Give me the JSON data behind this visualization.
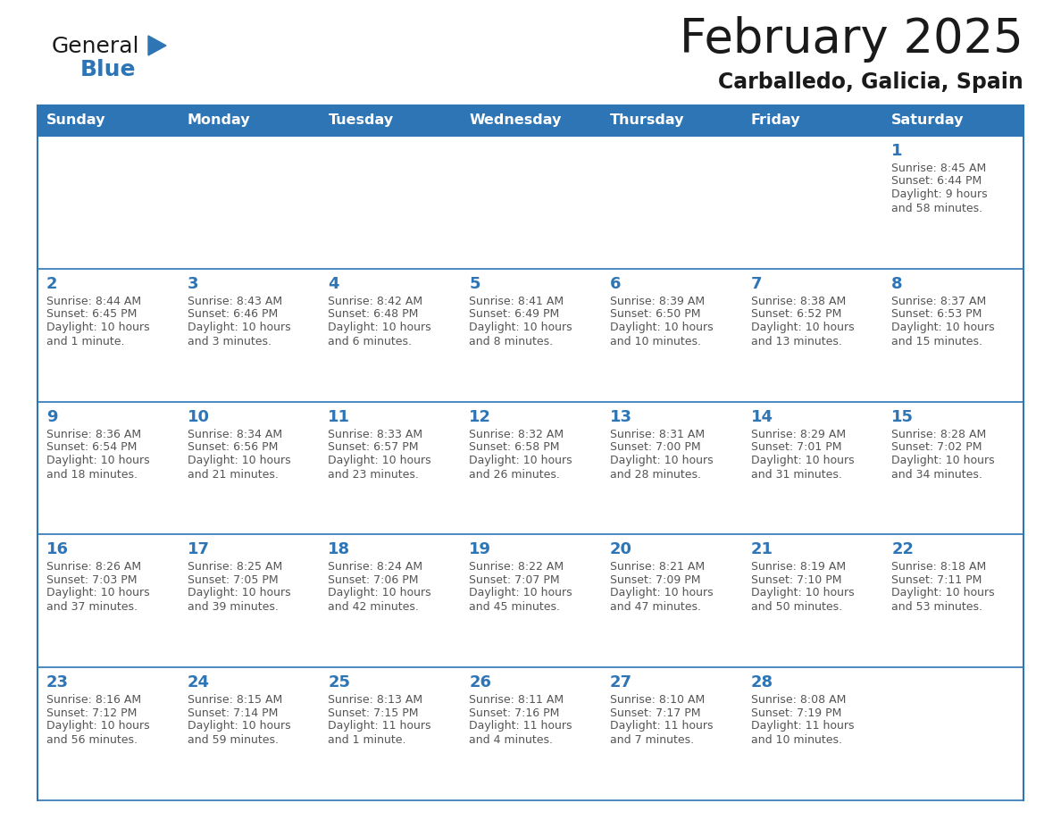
{
  "title": "February 2025",
  "subtitle": "Carballedo, Galicia, Spain",
  "header_bg": "#2E75B6",
  "header_text_color": "#FFFFFF",
  "cell_bg": "#FFFFFF",
  "border_color": "#2E75B6",
  "row_divider_color": "#2E75B6",
  "day_names": [
    "Sunday",
    "Monday",
    "Tuesday",
    "Wednesday",
    "Thursday",
    "Friday",
    "Saturday"
  ],
  "title_color": "#1a1a1a",
  "subtitle_color": "#1a1a1a",
  "day_number_color": "#2E75B6",
  "info_color": "#555555",
  "logo_general_color": "#1a1a1a",
  "logo_blue_color": "#2E75B6",
  "logo_triangle_color": "#2E75B6",
  "calendar_data": [
    [
      null,
      null,
      null,
      null,
      null,
      null,
      {
        "day": "1",
        "sunrise": "8:45 AM",
        "sunset": "6:44 PM",
        "daylight": "9 hours\nand 58 minutes."
      }
    ],
    [
      {
        "day": "2",
        "sunrise": "8:44 AM",
        "sunset": "6:45 PM",
        "daylight": "10 hours\nand 1 minute."
      },
      {
        "day": "3",
        "sunrise": "8:43 AM",
        "sunset": "6:46 PM",
        "daylight": "10 hours\nand 3 minutes."
      },
      {
        "day": "4",
        "sunrise": "8:42 AM",
        "sunset": "6:48 PM",
        "daylight": "10 hours\nand 6 minutes."
      },
      {
        "day": "5",
        "sunrise": "8:41 AM",
        "sunset": "6:49 PM",
        "daylight": "10 hours\nand 8 minutes."
      },
      {
        "day": "6",
        "sunrise": "8:39 AM",
        "sunset": "6:50 PM",
        "daylight": "10 hours\nand 10 minutes."
      },
      {
        "day": "7",
        "sunrise": "8:38 AM",
        "sunset": "6:52 PM",
        "daylight": "10 hours\nand 13 minutes."
      },
      {
        "day": "8",
        "sunrise": "8:37 AM",
        "sunset": "6:53 PM",
        "daylight": "10 hours\nand 15 minutes."
      }
    ],
    [
      {
        "day": "9",
        "sunrise": "8:36 AM",
        "sunset": "6:54 PM",
        "daylight": "10 hours\nand 18 minutes."
      },
      {
        "day": "10",
        "sunrise": "8:34 AM",
        "sunset": "6:56 PM",
        "daylight": "10 hours\nand 21 minutes."
      },
      {
        "day": "11",
        "sunrise": "8:33 AM",
        "sunset": "6:57 PM",
        "daylight": "10 hours\nand 23 minutes."
      },
      {
        "day": "12",
        "sunrise": "8:32 AM",
        "sunset": "6:58 PM",
        "daylight": "10 hours\nand 26 minutes."
      },
      {
        "day": "13",
        "sunrise": "8:31 AM",
        "sunset": "7:00 PM",
        "daylight": "10 hours\nand 28 minutes."
      },
      {
        "day": "14",
        "sunrise": "8:29 AM",
        "sunset": "7:01 PM",
        "daylight": "10 hours\nand 31 minutes."
      },
      {
        "day": "15",
        "sunrise": "8:28 AM",
        "sunset": "7:02 PM",
        "daylight": "10 hours\nand 34 minutes."
      }
    ],
    [
      {
        "day": "16",
        "sunrise": "8:26 AM",
        "sunset": "7:03 PM",
        "daylight": "10 hours\nand 37 minutes."
      },
      {
        "day": "17",
        "sunrise": "8:25 AM",
        "sunset": "7:05 PM",
        "daylight": "10 hours\nand 39 minutes."
      },
      {
        "day": "18",
        "sunrise": "8:24 AM",
        "sunset": "7:06 PM",
        "daylight": "10 hours\nand 42 minutes."
      },
      {
        "day": "19",
        "sunrise": "8:22 AM",
        "sunset": "7:07 PM",
        "daylight": "10 hours\nand 45 minutes."
      },
      {
        "day": "20",
        "sunrise": "8:21 AM",
        "sunset": "7:09 PM",
        "daylight": "10 hours\nand 47 minutes."
      },
      {
        "day": "21",
        "sunrise": "8:19 AM",
        "sunset": "7:10 PM",
        "daylight": "10 hours\nand 50 minutes."
      },
      {
        "day": "22",
        "sunrise": "8:18 AM",
        "sunset": "7:11 PM",
        "daylight": "10 hours\nand 53 minutes."
      }
    ],
    [
      {
        "day": "23",
        "sunrise": "8:16 AM",
        "sunset": "7:12 PM",
        "daylight": "10 hours\nand 56 minutes."
      },
      {
        "day": "24",
        "sunrise": "8:15 AM",
        "sunset": "7:14 PM",
        "daylight": "10 hours\nand 59 minutes."
      },
      {
        "day": "25",
        "sunrise": "8:13 AM",
        "sunset": "7:15 PM",
        "daylight": "11 hours\nand 1 minute."
      },
      {
        "day": "26",
        "sunrise": "8:11 AM",
        "sunset": "7:16 PM",
        "daylight": "11 hours\nand 4 minutes."
      },
      {
        "day": "27",
        "sunrise": "8:10 AM",
        "sunset": "7:17 PM",
        "daylight": "11 hours\nand 7 minutes."
      },
      {
        "day": "28",
        "sunrise": "8:08 AM",
        "sunset": "7:19 PM",
        "daylight": "11 hours\nand 10 minutes."
      },
      null
    ]
  ]
}
